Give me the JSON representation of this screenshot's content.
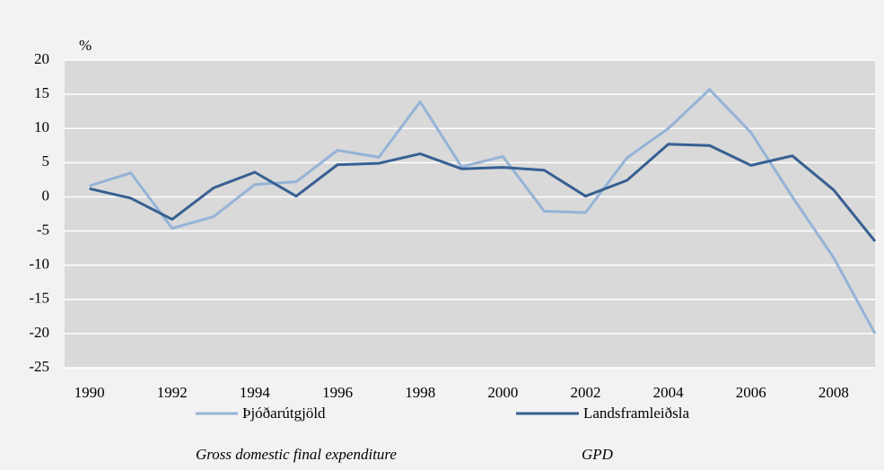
{
  "chart_data": {
    "type": "line",
    "y_label": "%",
    "x": [
      1990,
      1991,
      1992,
      1993,
      1994,
      1995,
      1996,
      1997,
      1998,
      1999,
      2000,
      2001,
      2002,
      2003,
      2004,
      2005,
      2006,
      2007,
      2008,
      2009
    ],
    "series": [
      {
        "name": "Þjóðarútgjöld",
        "translation": "Gross domestic final expenditure",
        "color": "#95b3d7",
        "values": [
          1.6,
          3.5,
          -4.6,
          -2.9,
          1.8,
          2.2,
          6.8,
          5.8,
          13.9,
          4.4,
          5.9,
          -2.1,
          -2.3,
          5.7,
          10.0,
          15.7,
          9.4,
          0.0,
          -8.9,
          -20.0
        ]
      },
      {
        "name": "Landsframleiðsla",
        "translation": "GPD",
        "color": "#376092",
        "values": [
          1.2,
          -0.2,
          -3.3,
          1.3,
          3.6,
          0.1,
          4.7,
          4.9,
          6.3,
          4.1,
          4.3,
          3.9,
          0.1,
          2.4,
          7.7,
          7.5,
          4.6,
          6.0,
          1.0,
          -6.5
        ]
      }
    ],
    "xlim": [
      1989.4,
      2009
    ],
    "xticks": [
      1990,
      1992,
      1994,
      1996,
      1998,
      2000,
      2002,
      2004,
      2006,
      2008
    ],
    "ylim": [
      -25,
      20
    ],
    "yticks": [
      -25,
      -20,
      -15,
      -10,
      -5,
      0,
      5,
      10,
      15,
      20
    ],
    "grid": true,
    "plot_background": "#d9d9d9"
  }
}
